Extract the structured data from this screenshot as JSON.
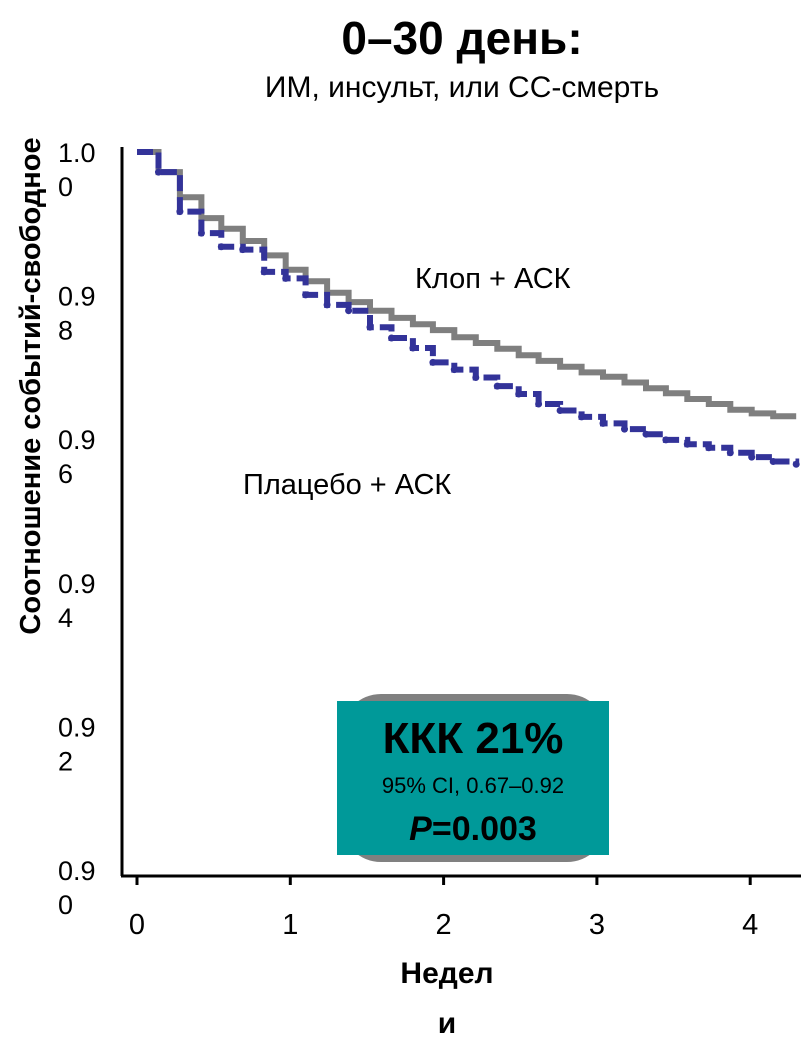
{
  "chart_data": {
    "type": "line",
    "title": "0–30 день:",
    "subtitle": "ИМ, инсульт, или СС-смерть",
    "ylabel": "Соотношение событий-свободное",
    "xlabel_lines": [
      "Недел",
      "и"
    ],
    "xlim": [
      0,
      4.3
    ],
    "ylim": [
      0.9,
      1.0
    ],
    "x_ticks": [
      "0",
      "1",
      "2",
      "3",
      "4"
    ],
    "y_ticks": [
      {
        "value": 1.0,
        "lines": [
          "1.0",
          "0"
        ]
      },
      {
        "value": 0.98,
        "lines": [
          "0.9",
          "8"
        ]
      },
      {
        "value": 0.96,
        "lines": [
          "0.9",
          "6"
        ]
      },
      {
        "value": 0.94,
        "lines": [
          "0.9",
          "4"
        ]
      },
      {
        "value": 0.92,
        "lines": [
          "0.9",
          "2"
        ]
      },
      {
        "value": 0.9,
        "lines": [
          "0.9",
          "0"
        ]
      }
    ],
    "series": [
      {
        "name": "Клоп + АСК",
        "color": "#7f7f7f",
        "style": "solid",
        "x": [
          0,
          0.14,
          0.28,
          0.42,
          0.55,
          0.69,
          0.83,
          0.97,
          1.1,
          1.24,
          1.38,
          1.52,
          1.66,
          1.8,
          1.93,
          2.07,
          2.21,
          2.35,
          2.49,
          2.62,
          2.76,
          2.9,
          3.04,
          3.18,
          3.32,
          3.45,
          3.59,
          3.73,
          3.87,
          4.01,
          4.15,
          4.3
        ],
        "y": [
          1.0,
          0.9972,
          0.9937,
          0.9908,
          0.9893,
          0.9876,
          0.9856,
          0.9836,
          0.982,
          0.9804,
          0.9791,
          0.9779,
          0.9769,
          0.976,
          0.9752,
          0.9742,
          0.9734,
          0.9726,
          0.9717,
          0.9709,
          0.9701,
          0.9693,
          0.9687,
          0.9679,
          0.9671,
          0.9664,
          0.9656,
          0.9649,
          0.9641,
          0.9636,
          0.9632,
          0.9632
        ]
      },
      {
        "name": "Плацебо + АСК",
        "color": "#333399",
        "style": "dashed",
        "x": [
          0,
          0.14,
          0.28,
          0.42,
          0.55,
          0.69,
          0.83,
          0.97,
          1.1,
          1.24,
          1.38,
          1.52,
          1.66,
          1.8,
          1.93,
          2.07,
          2.21,
          2.35,
          2.49,
          2.62,
          2.76,
          2.9,
          3.04,
          3.18,
          3.32,
          3.45,
          3.59,
          3.73,
          3.87,
          4.01,
          4.15,
          4.3
        ],
        "y": [
          1.0,
          0.9972,
          0.9917,
          0.9887,
          0.9868,
          0.9864,
          0.9833,
          0.9824,
          0.9801,
          0.9787,
          0.9779,
          0.9756,
          0.9741,
          0.9727,
          0.9707,
          0.9697,
          0.9686,
          0.9674,
          0.9663,
          0.9649,
          0.964,
          0.9631,
          0.9622,
          0.9614,
          0.9607,
          0.9599,
          0.9593,
          0.9588,
          0.9581,
          0.9575,
          0.9569,
          0.9565
        ]
      }
    ],
    "stats_box": {
      "title": "ККК 21%",
      "ci": "95% CI, 0.67–0.92",
      "p_italic": "P",
      "p_rest": "=0.003",
      "color": "#009999",
      "shadow_color": "#808080"
    }
  }
}
